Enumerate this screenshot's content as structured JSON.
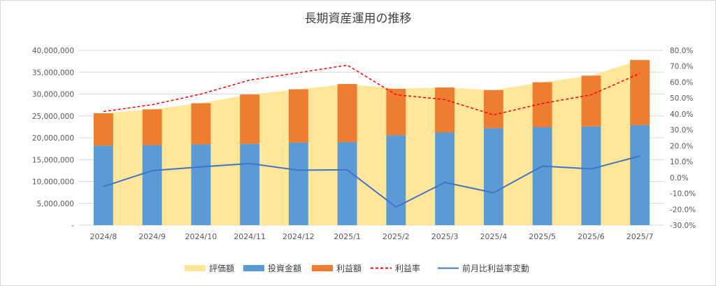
{
  "chart_data": {
    "type": "bar",
    "title": "長期資産運用の推移",
    "categories": [
      "2024/8",
      "2024/9",
      "2024/10",
      "2024/11",
      "2024/12",
      "2025/1",
      "2025/2",
      "2025/3",
      "2025/4",
      "2025/5",
      "2025/6",
      "2025/7"
    ],
    "y_left": {
      "min": 0,
      "max": 40000000,
      "step": 5000000,
      "tick_labels": [
        "-",
        "5,000,000",
        "10,000,000",
        "15,000,000",
        "20,000,000",
        "25,000,000",
        "30,000,000",
        "35,000,000",
        "40,000,000"
      ]
    },
    "y_right": {
      "min": -30,
      "max": 80,
      "step": 10,
      "unit": "%",
      "tick_labels": [
        "-30.0%",
        "-20.0%",
        "-10.0%",
        "0.0%",
        "10.0%",
        "20.0%",
        "30.0%",
        "40.0%",
        "50.0%",
        "60.0%",
        "70.0%",
        "80.0%"
      ]
    },
    "series": [
      {
        "name": "評価額",
        "type": "area",
        "axis": "left",
        "color": "#ffe699",
        "values": [
          25600000,
          26500000,
          27900000,
          29900000,
          31100000,
          32300000,
          31200000,
          31500000,
          30900000,
          32700000,
          34200000,
          37800000
        ]
      },
      {
        "name": "投資金額",
        "type": "bar-stack",
        "axis": "left",
        "color": "#5b9bd5",
        "values": [
          18200000,
          18300000,
          18500000,
          18600000,
          18900000,
          19000000,
          20600000,
          21200000,
          22200000,
          22400000,
          22600000,
          22900000
        ]
      },
      {
        "name": "利益額",
        "type": "bar-stack",
        "axis": "left",
        "color": "#ed7d31",
        "values": [
          7400000,
          8200000,
          9400000,
          11300000,
          12200000,
          13300000,
          10600000,
          10300000,
          8700000,
          10300000,
          11600000,
          14900000
        ]
      },
      {
        "name": "利益率",
        "type": "line-dashed",
        "axis": "right",
        "color": "#ff0000",
        "values": [
          41.5,
          45.8,
          52.5,
          61.3,
          65.9,
          70.7,
          52.1,
          49.0,
          39.4,
          46.6,
          52.0,
          65.5
        ]
      },
      {
        "name": "前月比利益率変動",
        "type": "line",
        "axis": "right",
        "color": "#4472c4",
        "values": [
          -5.7,
          4.3,
          6.7,
          8.8,
          4.6,
          4.8,
          -18.6,
          -3.1,
          -9.6,
          7.2,
          5.4,
          13.5
        ]
      }
    ],
    "legend_position": "bottom",
    "grid": true
  }
}
